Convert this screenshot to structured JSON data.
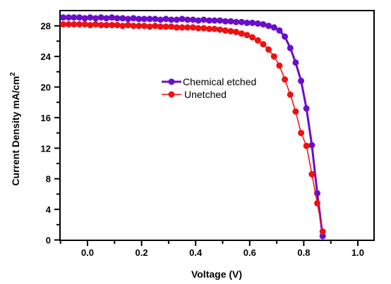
{
  "chart_data": {
    "type": "line",
    "title": "",
    "xlabel": "Voltage (V)",
    "ylabel": "Current Density mA/cm",
    "ylabel_superscript": "2",
    "xlim": [
      -0.1,
      1.0
    ],
    "ylim": [
      0,
      29.5
    ],
    "x_ticks": [
      0.0,
      0.2,
      0.4,
      0.6,
      0.8,
      1.0
    ],
    "x_tick_labels": [
      "0.0",
      "0.2",
      "0.4",
      "0.6",
      "0.8",
      "1.0"
    ],
    "y_ticks": [
      0,
      4,
      8,
      12,
      16,
      20,
      24,
      28
    ],
    "y_tick_labels": [
      "0",
      "4",
      "8",
      "12",
      "16",
      "20",
      "24",
      "28"
    ],
    "grid": false,
    "legend_position": "center",
    "series": [
      {
        "name": "Chemical etched",
        "color": "#6a0dcc",
        "marker": "circle",
        "x": [
          -0.09,
          -0.07,
          -0.05,
          -0.03,
          -0.01,
          0.01,
          0.03,
          0.05,
          0.07,
          0.09,
          0.11,
          0.13,
          0.15,
          0.17,
          0.19,
          0.21,
          0.23,
          0.25,
          0.27,
          0.29,
          0.31,
          0.33,
          0.35,
          0.37,
          0.39,
          0.41,
          0.43,
          0.45,
          0.47,
          0.49,
          0.51,
          0.53,
          0.55,
          0.57,
          0.59,
          0.61,
          0.63,
          0.65,
          0.67,
          0.69,
          0.71,
          0.73,
          0.75,
          0.77,
          0.79,
          0.81,
          0.83,
          0.85,
          0.87
        ],
        "y": [
          29.1,
          29.1,
          29.1,
          29.1,
          29.0,
          29.1,
          29.0,
          29.1,
          29.0,
          29.1,
          29.0,
          29.0,
          28.9,
          29.0,
          28.9,
          28.9,
          28.9,
          28.9,
          28.8,
          28.9,
          28.8,
          28.8,
          28.9,
          28.8,
          28.8,
          28.7,
          28.8,
          28.7,
          28.7,
          28.7,
          28.6,
          28.6,
          28.5,
          28.5,
          28.4,
          28.4,
          28.3,
          28.2,
          28.0,
          27.8,
          27.4,
          26.6,
          25.1,
          23.2,
          20.8,
          17.2,
          12.4,
          6.1,
          0.5
        ]
      },
      {
        "name": "Unetched",
        "color": "#ee1111",
        "marker": "circle",
        "x": [
          -0.09,
          -0.07,
          -0.05,
          -0.03,
          -0.01,
          0.01,
          0.03,
          0.05,
          0.07,
          0.09,
          0.11,
          0.13,
          0.15,
          0.17,
          0.19,
          0.21,
          0.23,
          0.25,
          0.27,
          0.29,
          0.31,
          0.33,
          0.35,
          0.37,
          0.39,
          0.41,
          0.43,
          0.45,
          0.47,
          0.49,
          0.51,
          0.53,
          0.55,
          0.57,
          0.59,
          0.61,
          0.63,
          0.65,
          0.67,
          0.69,
          0.71,
          0.73,
          0.75,
          0.77,
          0.79,
          0.81,
          0.83,
          0.85,
          0.87
        ],
        "y": [
          28.2,
          28.2,
          28.2,
          28.2,
          28.2,
          28.1,
          28.2,
          28.1,
          28.1,
          28.1,
          28.1,
          28.0,
          28.1,
          28.0,
          28.0,
          28.0,
          27.9,
          28.0,
          27.9,
          27.9,
          27.9,
          27.8,
          27.8,
          27.8,
          27.8,
          27.7,
          27.7,
          27.6,
          27.6,
          27.5,
          27.4,
          27.3,
          27.2,
          27.0,
          26.8,
          26.5,
          26.1,
          25.6,
          24.9,
          24.0,
          22.8,
          21.0,
          19.0,
          16.8,
          14.0,
          12.3,
          8.6,
          4.8,
          1.1
        ]
      }
    ]
  }
}
